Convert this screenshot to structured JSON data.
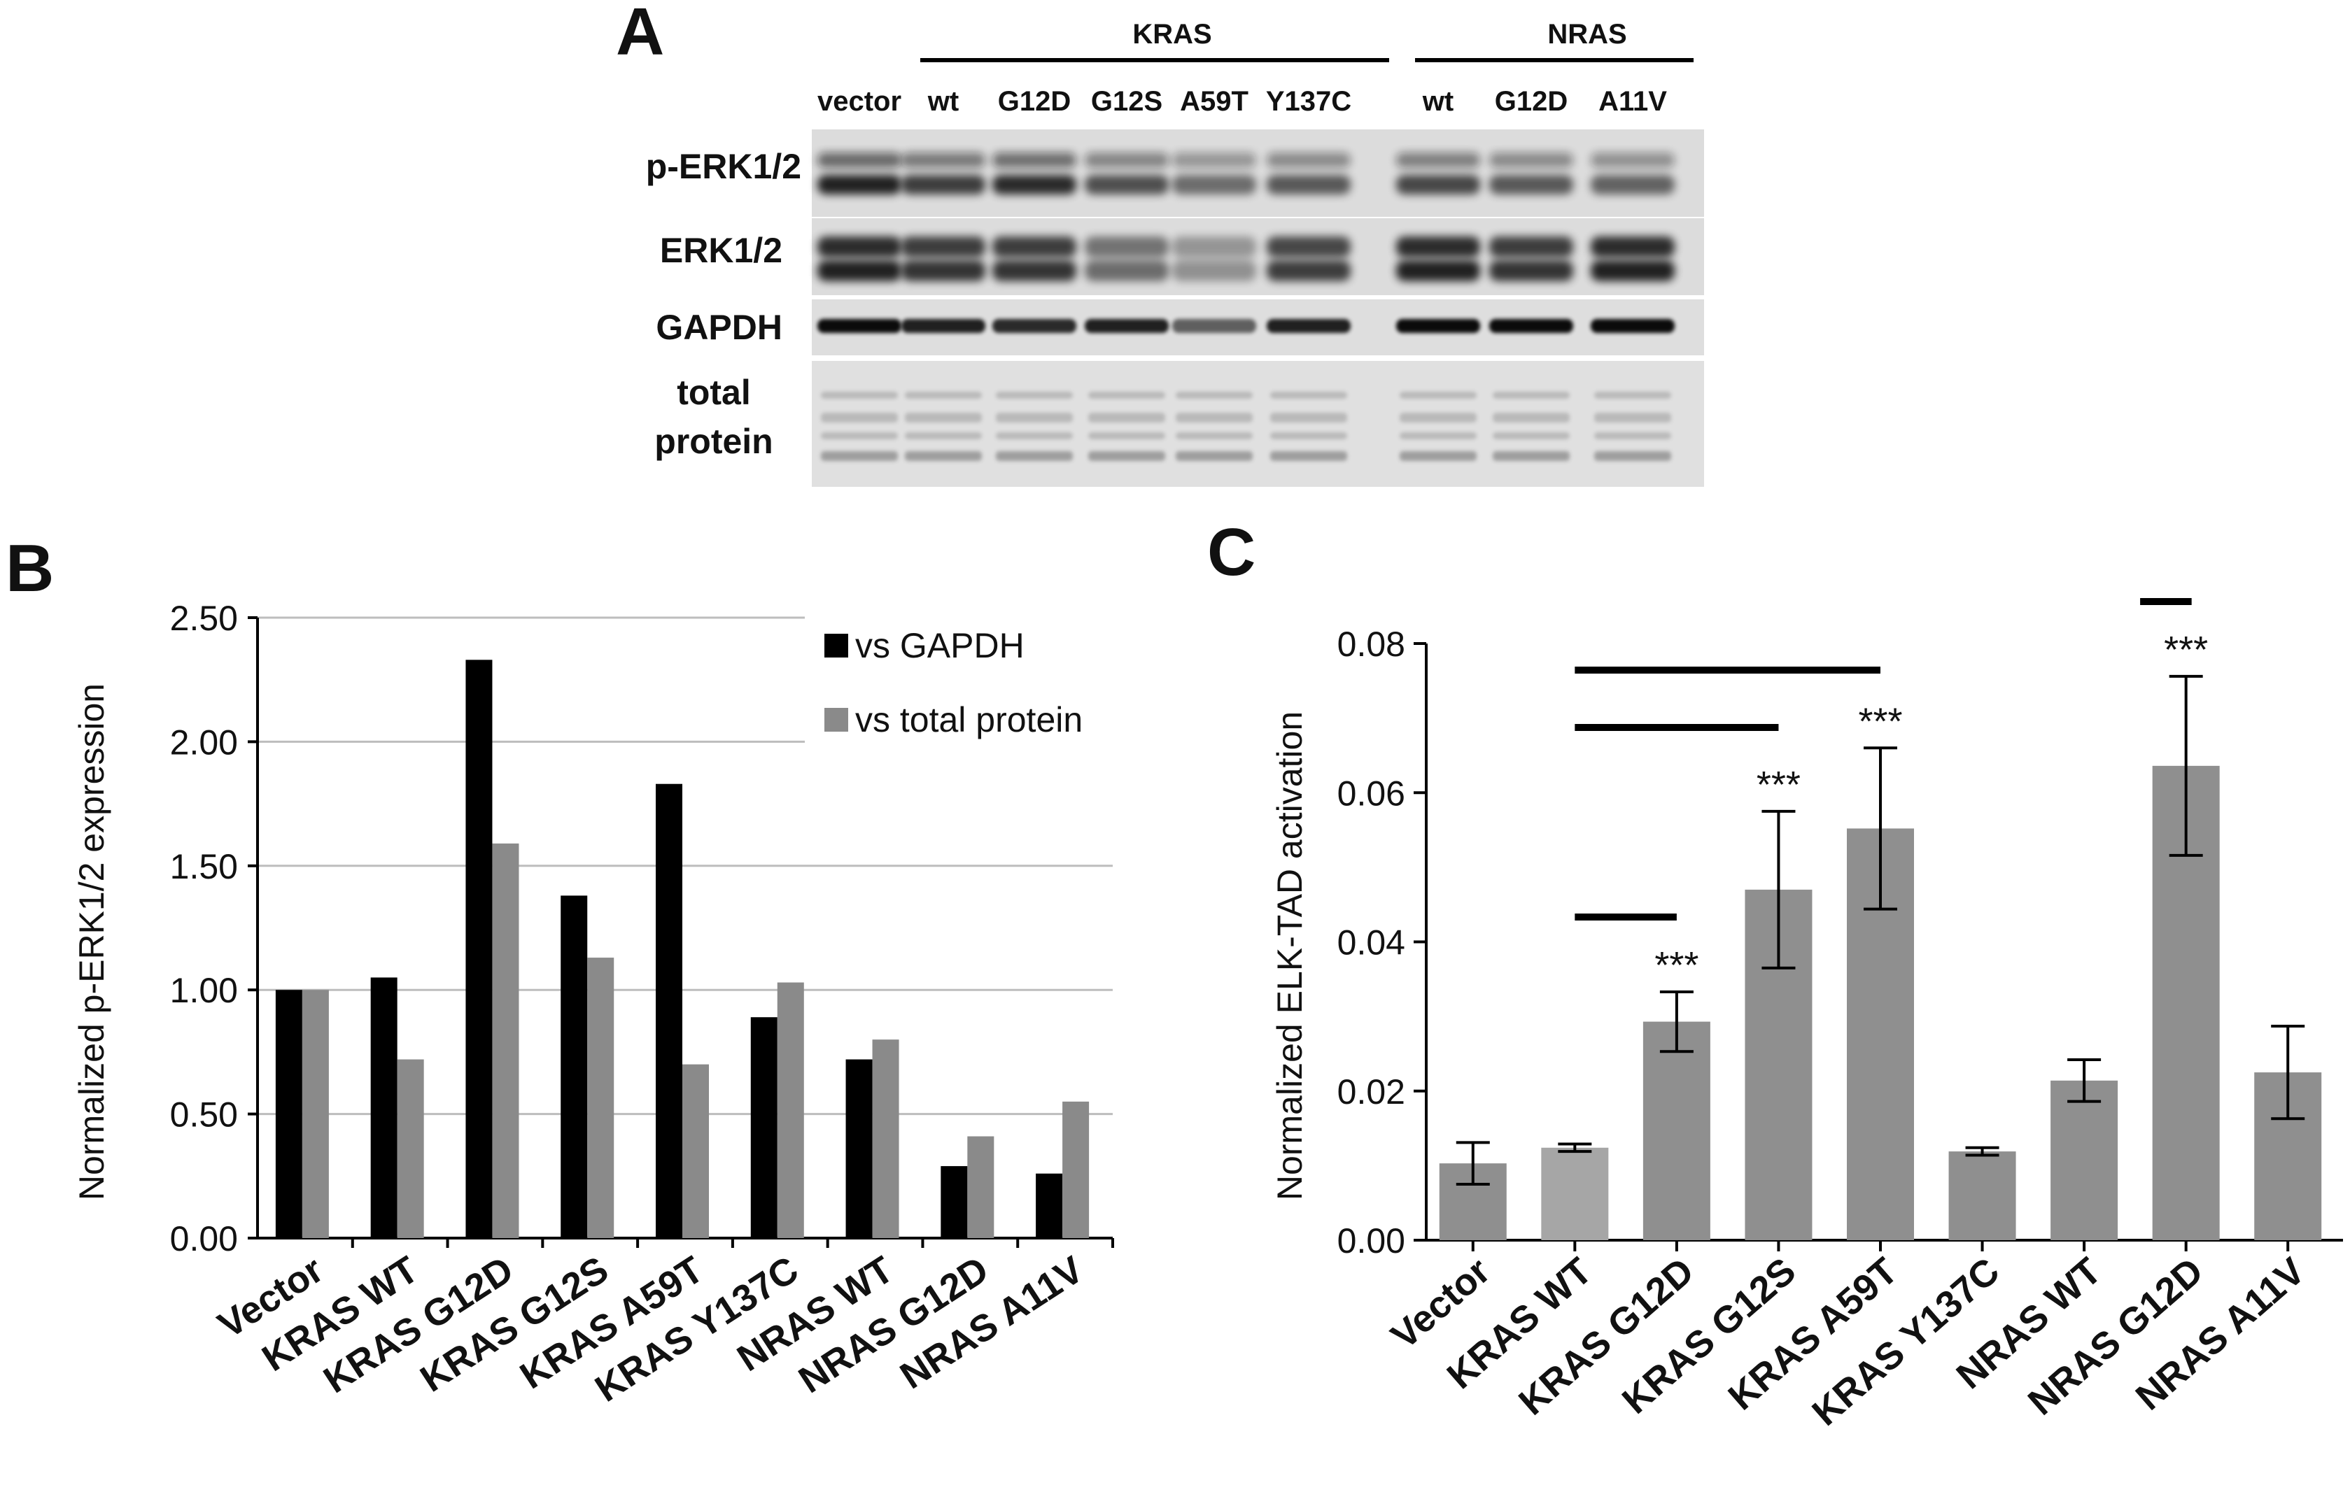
{
  "colors": {
    "black_series": "#000000",
    "grey_series": "#8a8a8a",
    "bar_c": "#8f8f8f",
    "bar_c_light": "#a6a6a6",
    "blot_bg": "#d9d9d9"
  },
  "panel_a": {
    "letter": "A",
    "groups": [
      {
        "label": "KRAS"
      },
      {
        "label": "NRAS"
      }
    ],
    "lanes": [
      "vector",
      "wt",
      "G12D",
      "G12S",
      "A59T",
      "Y137C",
      "wt",
      "G12D",
      "A11V"
    ],
    "rows": [
      {
        "label": "p-ERK1/2"
      },
      {
        "label": "ERK1/2"
      },
      {
        "label": "GAPDH"
      },
      {
        "label": "total\nprotein",
        "line1": "total",
        "line2": "protein"
      }
    ]
  },
  "panel_b": {
    "letter": "B"
  },
  "panel_c": {
    "letter": "C"
  },
  "chart_data": [
    {
      "type": "bar",
      "panel": "B",
      "ylabel": "Normalized p-ERK1/2 expression",
      "xlabel": "",
      "ylim": [
        0,
        2.5
      ],
      "yticks": [
        "0.00",
        "0.50",
        "1.00",
        "1.50",
        "2.00",
        "2.50"
      ],
      "grid": true,
      "legend_position": "top-right",
      "categories": [
        "Vector",
        "KRAS WT",
        "KRAS G12D",
        "KRAS G12S",
        "KRAS A59T",
        "KRAS Y137C",
        "NRAS WT",
        "NRAS G12D",
        "NRAS A11V"
      ],
      "series": [
        {
          "name": "vs GAPDH",
          "color": "#000000",
          "values": [
            1.0,
            1.05,
            2.33,
            1.38,
            1.83,
            0.89,
            0.72,
            0.29,
            0.26
          ]
        },
        {
          "name": "vs total protein",
          "color": "#8a8a8a",
          "values": [
            1.0,
            0.72,
            1.59,
            1.13,
            0.7,
            1.03,
            0.8,
            0.41,
            0.55
          ]
        }
      ]
    },
    {
      "type": "bar",
      "panel": "C",
      "ylabel": "Normalized ELK-TAD activation",
      "xlabel": "",
      "ylim": [
        0,
        0.08
      ],
      "yticks": [
        "0.00",
        "0.02",
        "0.04",
        "0.06",
        "0.08"
      ],
      "grid": false,
      "categories": [
        "Vector",
        "KRAS WT",
        "KRAS G12D",
        "KRAS G12S",
        "KRAS A59T",
        "KRAS Y137C",
        "NRAS WT",
        "NRAS G12D",
        "NRAS A11V"
      ],
      "values": [
        0.0103,
        0.0124,
        0.0293,
        0.047,
        0.0552,
        0.0119,
        0.0214,
        0.0636,
        0.0225
      ],
      "errors": [
        0.0028,
        0.0005,
        0.004,
        0.0105,
        0.0108,
        0.0005,
        0.0028,
        0.012,
        0.0062
      ],
      "significance": [
        "",
        "",
        "***",
        "***",
        "***",
        "",
        "",
        "***",
        ""
      ],
      "comparisons": [
        {
          "from": "KRAS WT",
          "to": "KRAS G12D"
        },
        {
          "from": "KRAS WT",
          "to": "KRAS G12S"
        },
        {
          "from": "KRAS WT",
          "to": "KRAS A59T"
        },
        {
          "from": "NRAS WT",
          "to": "NRAS G12D"
        }
      ]
    }
  ]
}
